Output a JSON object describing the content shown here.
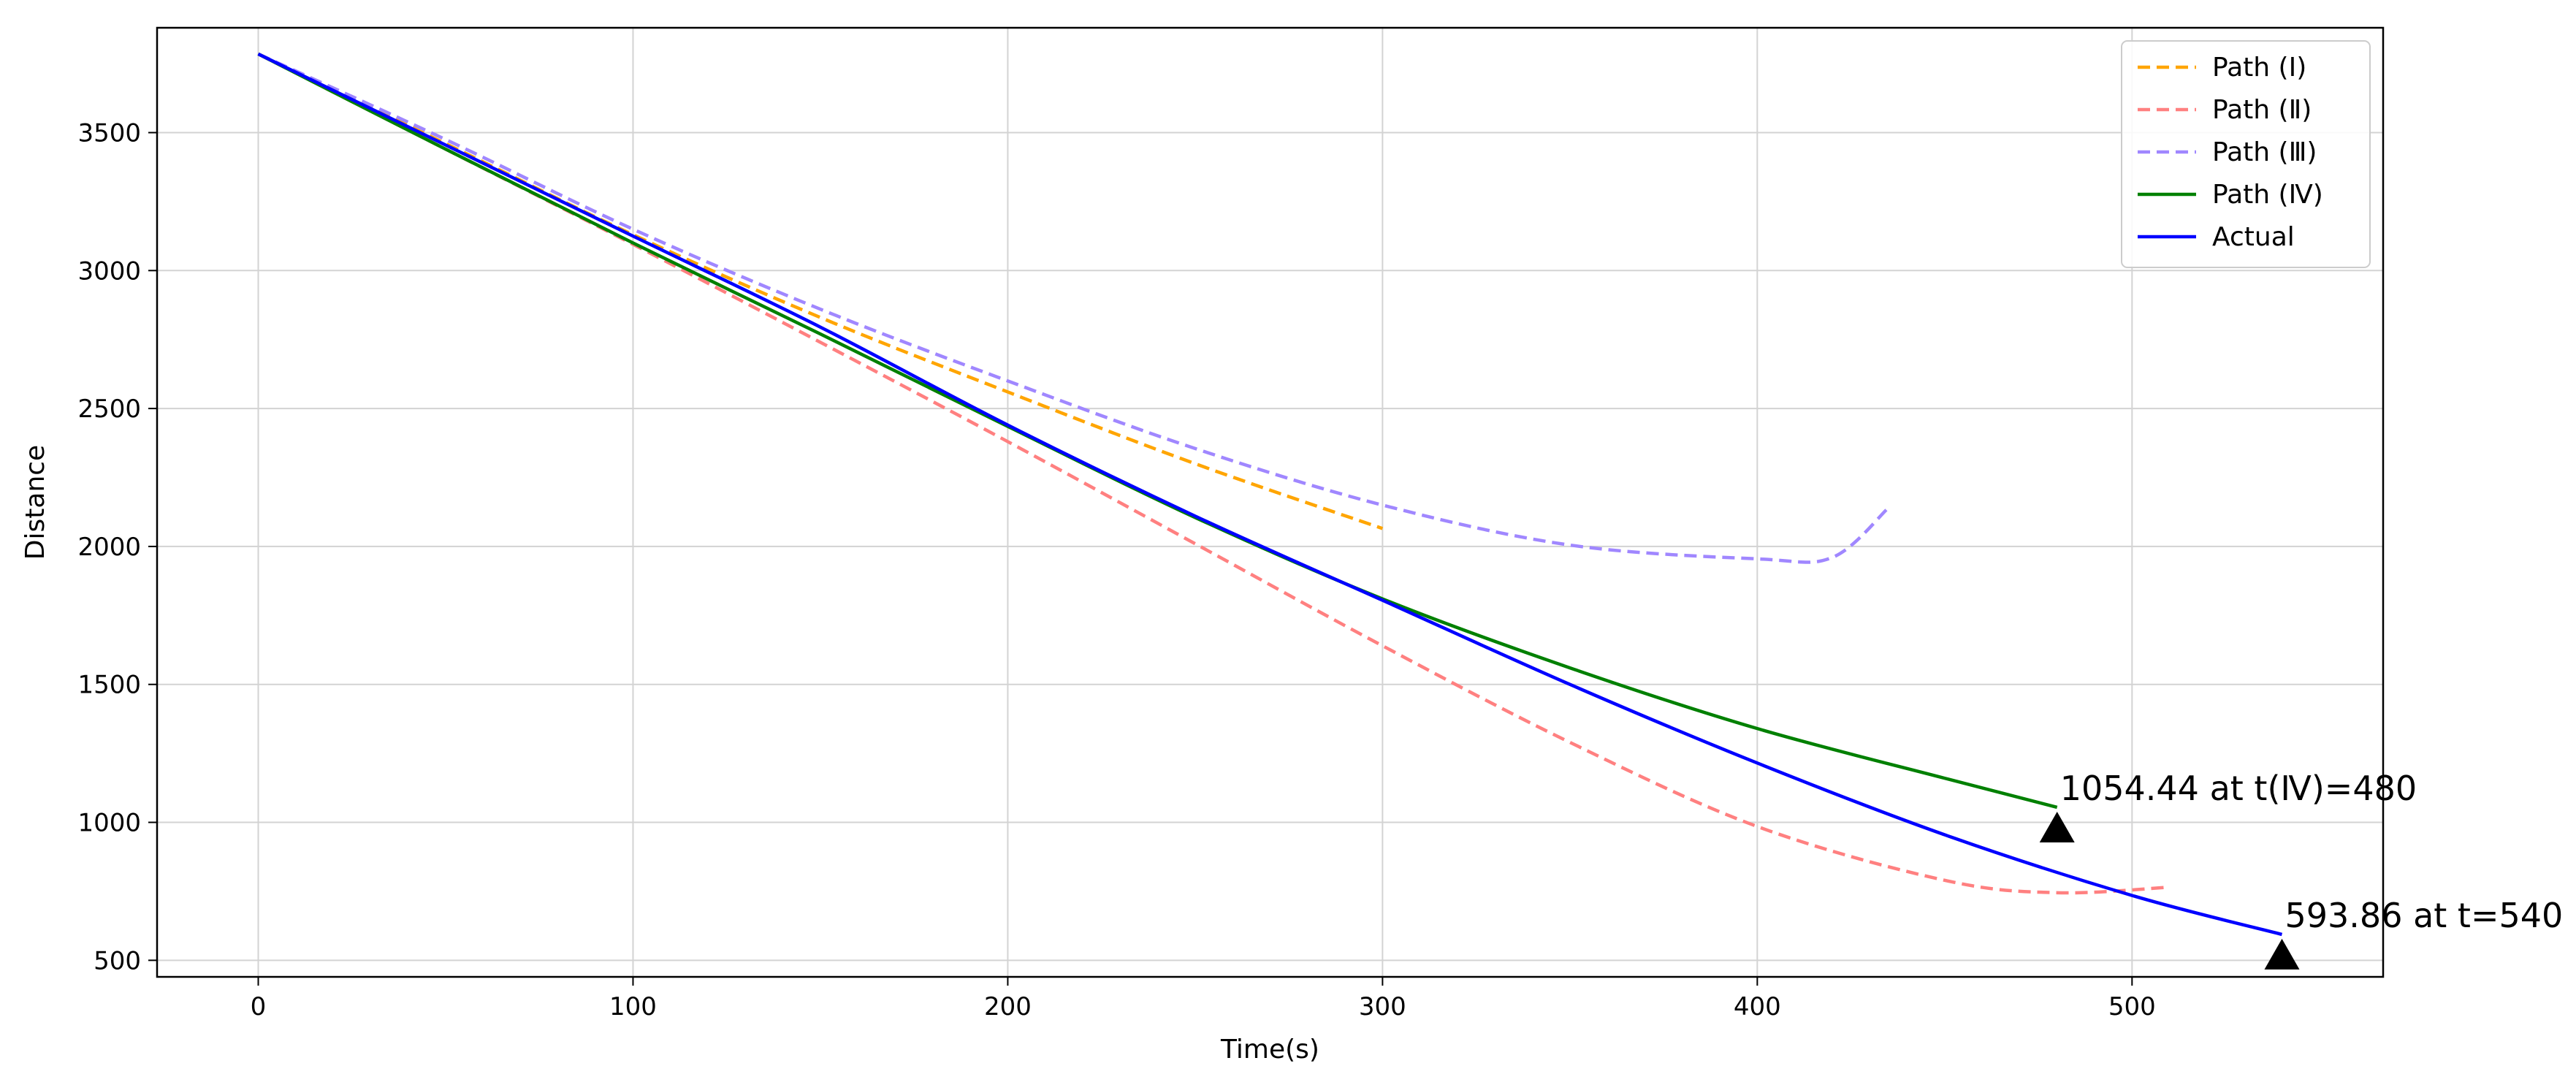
{
  "chart_data": {
    "type": "line",
    "title": "",
    "xlabel": "Time(s)",
    "ylabel": "Distance",
    "xlim": [
      -27,
      567
    ],
    "ylim": [
      440,
      3880
    ],
    "xticks": [
      0,
      100,
      200,
      300,
      400,
      500
    ],
    "yticks": [
      500,
      1000,
      1500,
      2000,
      2500,
      3000,
      3500
    ],
    "grid": true,
    "legend_position": "top-right",
    "series": [
      {
        "name": "Path (Ⅰ)",
        "color": "#ffa500",
        "dashed": true,
        "x": [
          0,
          50,
          100,
          150,
          200,
          250,
          300
        ],
        "y": [
          3785,
          3460,
          3130,
          2830,
          2560,
          2300,
          2065
        ]
      },
      {
        "name": "Path (Ⅱ)",
        "color": "#ff8080",
        "dashed": true,
        "x": [
          0,
          50,
          100,
          150,
          200,
          250,
          300,
          350,
          400,
          450,
          480,
          510
        ],
        "y": [
          3785,
          3440,
          3095,
          2740,
          2380,
          2010,
          1640,
          1290,
          985,
          790,
          745,
          765
        ]
      },
      {
        "name": "Path (Ⅲ)",
        "color": "#a087ff",
        "dashed": true,
        "x": [
          0,
          50,
          100,
          150,
          200,
          250,
          300,
          350,
          400,
          420,
          435
        ],
        "y": [
          3785,
          3475,
          3150,
          2860,
          2600,
          2355,
          2150,
          2005,
          1955,
          1960,
          2140
        ]
      },
      {
        "name": "Path (Ⅳ)",
        "color": "#008000",
        "dashed": false,
        "x": [
          0,
          50,
          100,
          150,
          200,
          250,
          300,
          350,
          400,
          450,
          480
        ],
        "y": [
          3785,
          3440,
          3100,
          2770,
          2435,
          2105,
          1810,
          1560,
          1340,
          1160,
          1054.44
        ]
      },
      {
        "name": "Actual",
        "color": "#0000ff",
        "dashed": false,
        "x": [
          0,
          50,
          100,
          150,
          200,
          250,
          300,
          350,
          400,
          450,
          500,
          540
        ],
        "y": [
          3785,
          3455,
          3125,
          2795,
          2440,
          2110,
          1805,
          1500,
          1215,
          955,
          735,
          593.86
        ]
      }
    ],
    "annotations": [
      {
        "text": "1054.44 at t(Ⅳ)=480",
        "x": 480,
        "y": 1054.44,
        "marker": "triangle"
      },
      {
        "text": "593.86 at t=540",
        "x": 540,
        "y": 593.86,
        "marker": "triangle"
      }
    ]
  }
}
